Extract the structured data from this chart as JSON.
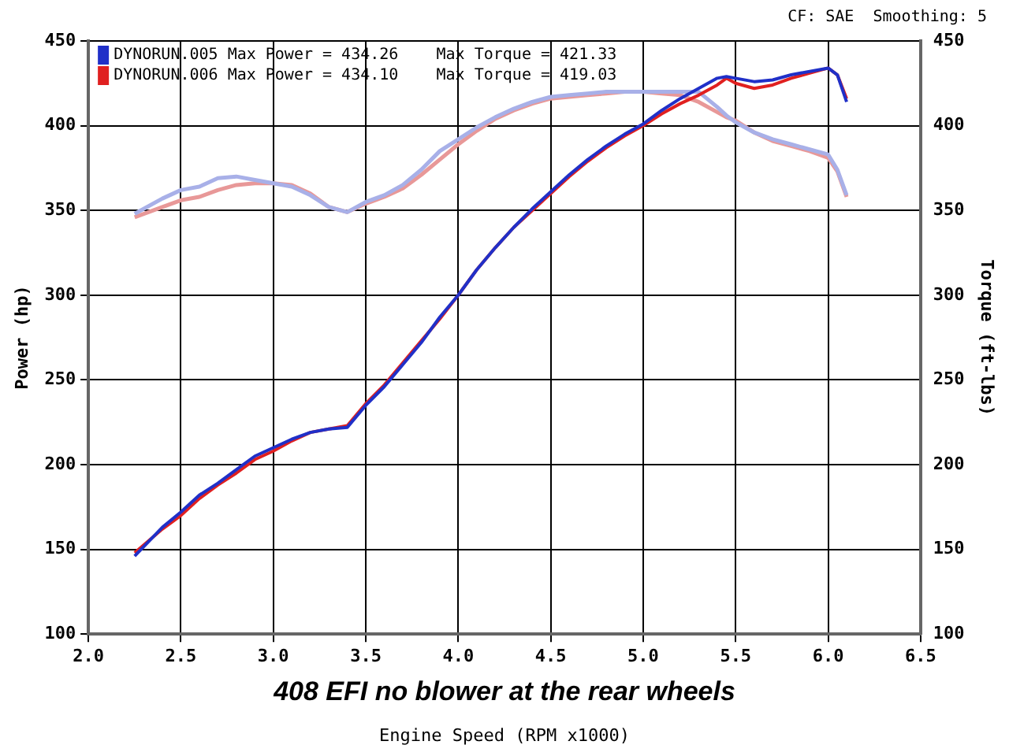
{
  "chart_data": {
    "type": "line",
    "title": "408 EFI no blower at the rear wheels",
    "xlabel": "Engine Speed (RPM x1000)",
    "ylabel": "Power (hp)",
    "y2label": "Torque (ft-lbs)",
    "annotations": [
      "CF: SAE  Smoothing: 5"
    ],
    "xlim": [
      2.0,
      6.5
    ],
    "xticks": [
      {
        "value": 2,
        "label": "2.0"
      },
      {
        "value": 2.5,
        "label": "2.5"
      },
      {
        "value": 3,
        "label": "3.0"
      },
      {
        "value": 3.5,
        "label": "3.5"
      },
      {
        "value": 4,
        "label": "4.0"
      },
      {
        "value": 4.5,
        "label": "4.5"
      },
      {
        "value": 5,
        "label": "5.0"
      },
      {
        "value": 5.5,
        "label": "5.5"
      },
      {
        "value": 6,
        "label": "6.0"
      },
      {
        "value": 6.5,
        "label": "6.5"
      }
    ],
    "ylim": [
      100,
      450
    ],
    "yticks": [
      100,
      150,
      200,
      250,
      300,
      350,
      400,
      450
    ],
    "y2lim": [
      100,
      450
    ],
    "y2ticks": [
      100,
      150,
      200,
      250,
      300,
      350,
      400,
      450
    ],
    "grid": true,
    "legend": "top left",
    "marker": "none",
    "line_style": "solid",
    "x": [
      2.25,
      2.4,
      2.5,
      2.6,
      2.7,
      2.8,
      2.9,
      3.0,
      3.1,
      3.2,
      3.3,
      3.4,
      3.5,
      3.6,
      3.7,
      3.8,
      3.9,
      4.0,
      4.1,
      4.2,
      4.3,
      4.4,
      4.5,
      4.6,
      4.7,
      4.8,
      4.9,
      5.0,
      5.1,
      5.2,
      5.3,
      5.4,
      5.45,
      5.5,
      5.6,
      5.7,
      5.8,
      5.9,
      6.0,
      6.05,
      6.1
    ],
    "series": [
      {
        "name": "DYNORUN.005 Max Power = 434.26    Max Torque = 421.33",
        "color": "#2030c8",
        "values": [
          146,
          163,
          172,
          182,
          189,
          197,
          205,
          210,
          215,
          219,
          221,
          222,
          235,
          246,
          259,
          272,
          287,
          300,
          315,
          328,
          340,
          351,
          361,
          371,
          380,
          388,
          395,
          401,
          409,
          416,
          422,
          428,
          429,
          428,
          426,
          427,
          430,
          432,
          434,
          430,
          414
        ]
      },
      {
        "name": "DYNORUN.006 Max Power = 434.10    Max Torque = 419.03",
        "color": "#e02020",
        "values": [
          148,
          162,
          170,
          180,
          188,
          195,
          203,
          208,
          214,
          219,
          221,
          223,
          236,
          247,
          260,
          273,
          286,
          300,
          315,
          328,
          340,
          350,
          360,
          370,
          379,
          387,
          394,
          400,
          407,
          413,
          418,
          424,
          428,
          425,
          422,
          424,
          428,
          431,
          434,
          430,
          416
        ]
      },
      {
        "color": "#a8b0e8",
        "axis": "y2",
        "values": [
          348,
          357,
          362,
          364,
          369,
          370,
          368,
          366,
          364,
          359,
          352,
          349,
          355,
          359,
          365,
          374,
          385,
          392,
          399,
          405,
          410,
          414,
          417,
          418,
          419,
          420,
          420,
          420,
          420,
          420,
          420,
          411,
          406,
          402,
          396,
          392,
          389,
          386,
          383,
          374,
          359
        ]
      },
      {
        "color": "#e89898",
        "axis": "y2",
        "values": [
          346,
          352,
          356,
          358,
          362,
          365,
          366,
          366,
          365,
          360,
          352,
          349,
          354,
          358,
          363,
          371,
          380,
          389,
          397,
          404,
          409,
          413,
          416,
          417,
          418,
          419,
          420,
          420,
          419,
          418,
          414,
          408,
          405,
          403,
          396,
          391,
          388,
          385,
          381,
          373,
          358
        ]
      }
    ]
  }
}
